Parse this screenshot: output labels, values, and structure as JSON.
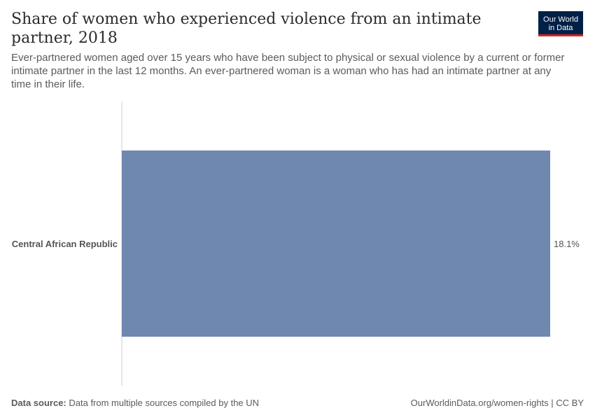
{
  "header": {
    "title": "Share of women who experienced violence from an intimate partner, 2018",
    "subtitle": "Ever-partnered women aged over 15 years who have been subject to physical or sexual violence by a current or former intimate partner in the last 12 months. An ever-partnered woman is a woman who has had an intimate partner at any time in their life."
  },
  "logo": {
    "line1": "Our World",
    "line2": "in Data"
  },
  "footer": {
    "source_label": "Data source:",
    "source_text": "Data from multiple sources compiled by the UN",
    "link": "OurWorldinData.org/women-rights | CC BY"
  },
  "chart_data": {
    "type": "bar",
    "orientation": "horizontal",
    "title": "Share of women who experienced violence from an intimate partner, 2018",
    "categories": [
      "Central African Republic"
    ],
    "values": [
      18.1
    ],
    "value_labels": [
      "18.1%"
    ],
    "xlim": [
      0,
      18.1
    ],
    "bar_color": "#6f88b0",
    "grid": false
  }
}
